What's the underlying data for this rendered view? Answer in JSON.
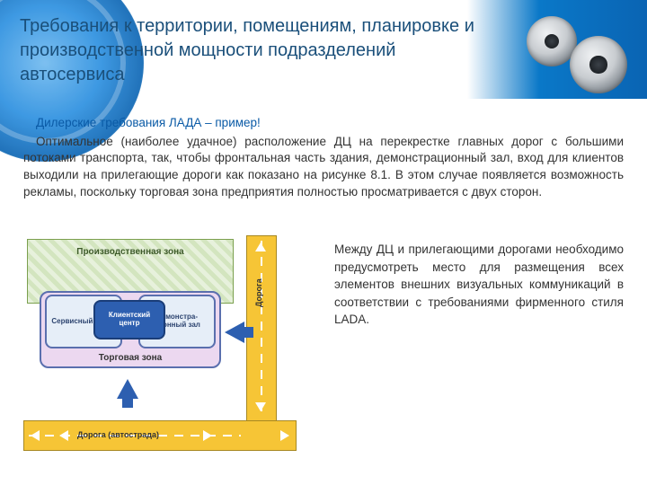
{
  "header": {
    "title": "Требования к территории, помещениям, планировке и производственной мощности подразделений автосервиса",
    "title_color": "#1a4f7a",
    "swirl_colors": [
      "#6fb9ef",
      "#2a8fe0",
      "#0a64b3"
    ],
    "bar_gradient": [
      "#0a78c8",
      "#0a64b3"
    ],
    "gear_colors": [
      "#f0f2f4",
      "#c8ccd0",
      "#8a9198",
      "#5b636a"
    ]
  },
  "content": {
    "subtitle": "Дилерские требования ЛАДА – пример!",
    "subtitle_color": "#0a5aa6",
    "paragraph1": "Оптимальное (наиболее удачное) расположение ДЦ на перекрестке главных дорог с большими потоками транспорта, так, чтобы фронтальная часть здания, демонстрационный зал, вход для клиентов выходили на прилегающие дороги как показано на рисунке 8.1. В этом случае появляется возможность рекламы, поскольку торговая зона предприятия полностью просматривается с двух сторон.",
    "paragraph2": "Между ДЦ и прилегающими дорогами необходимо предусмотреть место для размещения всех элементов внешних визуальных коммуникаций в соответствии с требованиями фирменного стиля LADA.",
    "text_color": "#333333",
    "font_size_pt": 10
  },
  "diagram": {
    "type": "infographic",
    "background_color": "#ffffff",
    "road_color": "#f6c536",
    "road_border": "#a78822",
    "road_dash_color": "#ffffff",
    "road_v_label": "Дорога",
    "road_h_label": "Дорога (автострада)",
    "arrow_color_small": "#ffffff",
    "arrow_color_large": "#2d5fb0",
    "zones": {
      "production": {
        "label": "Производственная зона",
        "fill_pattern": [
          "#e7f1dc",
          "#d3e5bf"
        ],
        "border": "#7ba04e",
        "label_color": "#3d5a2a"
      },
      "sales": {
        "label": "Торговая зона",
        "fill": "#ecd8f0",
        "border": "#5a6fae",
        "label_color": "#333333"
      }
    },
    "cards": {
      "service": {
        "label": "Сервисный центр",
        "fill": "#e6eef8",
        "border": "#5a6fae",
        "text_color": "#2d4470"
      },
      "client": {
        "label": "Клиентский центр",
        "fill": "#2d5fb0",
        "border": "#1a3d78",
        "text_color": "#ffffff"
      },
      "demo": {
        "label": "Демонстра-ционный зал",
        "fill": "#e6eef8",
        "border": "#5a6fae",
        "text_color": "#2d4470"
      }
    }
  }
}
